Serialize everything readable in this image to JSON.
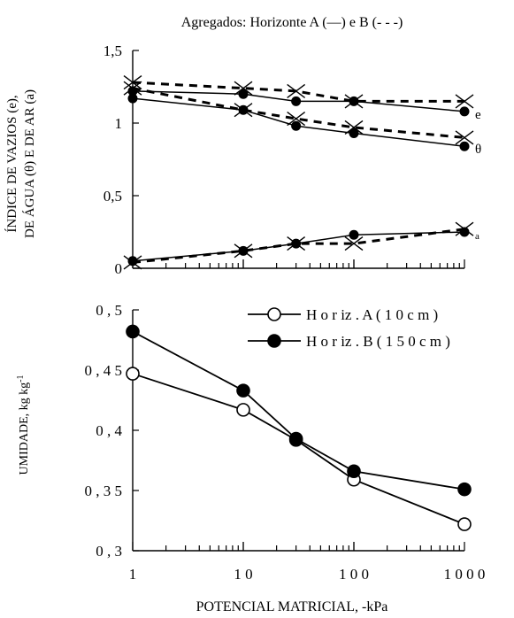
{
  "figure": {
    "title": "Agregados: Horizonte A (—) e B (- - -)",
    "xlabel": "POTENCIAL MATRICIAL, -kPa"
  },
  "chart_data": [
    {
      "type": "line",
      "title": "Agregados: Horizonte A (—) e B (- - -)",
      "ylabel": "ÍNDICE DE VAZIOS (e), DE ÁGUA (θ) E DE AR (a)",
      "ylabel_lines": [
        "ÍNDICE DE VAZIOS (e),",
        "DE ÁGUA (θ) E DE AR (a)"
      ],
      "x_scale": "log",
      "xlim": [
        1,
        1000
      ],
      "ylim": [
        0,
        1.5
      ],
      "yticks": [
        0,
        0.5,
        1,
        1.5
      ],
      "ytick_labels": [
        "0",
        "0,5",
        "1",
        "1,5"
      ],
      "series": [
        {
          "name": "e",
          "label": "e",
          "horizon": "A",
          "dash": "solid",
          "marker": "circle",
          "x": [
            1,
            10,
            30,
            100,
            1000
          ],
          "y": [
            1.22,
            1.2,
            1.15,
            1.15,
            1.08
          ]
        },
        {
          "horizon": "B",
          "dash": "dashed",
          "marker": "x",
          "x": [
            1,
            10,
            30,
            100,
            1000
          ],
          "y": [
            1.28,
            1.24,
            1.22,
            1.15,
            1.15
          ]
        },
        {
          "name": "θ",
          "label": "θ",
          "horizon": "A",
          "dash": "solid",
          "marker": "circle",
          "x": [
            1,
            10,
            30,
            100,
            1000
          ],
          "y": [
            1.17,
            1.09,
            0.98,
            0.93,
            0.84
          ]
        },
        {
          "horizon": "B",
          "dash": "dashed",
          "marker": "x",
          "x": [
            1,
            10,
            30,
            100,
            1000
          ],
          "y": [
            1.24,
            1.09,
            1.03,
            0.97,
            0.9
          ]
        },
        {
          "name": "a",
          "label": "a",
          "horizon": "A",
          "dash": "solid",
          "marker": "circle",
          "x": [
            1,
            10,
            30,
            100,
            1000
          ],
          "y": [
            0.05,
            0.12,
            0.17,
            0.23,
            0.25
          ]
        },
        {
          "horizon": "B",
          "dash": "dashed",
          "marker": "x",
          "x": [
            1,
            10,
            30,
            100,
            1000
          ],
          "y": [
            0.04,
            0.12,
            0.17,
            0.17,
            0.27
          ]
        }
      ]
    },
    {
      "type": "line",
      "ylabel": "UMIDADE, kg kg⁻¹",
      "ylabel_main": "UMIDADE, kg kg",
      "ylabel_sup": "-1",
      "xlabel": "POTENCIAL MATRICIAL, -kPa",
      "x_scale": "log",
      "xlim": [
        1,
        1000
      ],
      "xticks": [
        1,
        10,
        100,
        1000
      ],
      "xtick_labels": [
        "1",
        "1 0",
        "1 0 0",
        "1 0 0 0"
      ],
      "ylim": [
        0.3,
        0.5
      ],
      "yticks": [
        0.3,
        0.35,
        0.4,
        0.45,
        0.5
      ],
      "ytick_labels": [
        "0 , 3",
        "0 , 3 5",
        "0 , 4",
        "0 , 4 5",
        "0 , 5"
      ],
      "legend": "top-right",
      "series": [
        {
          "name": "H o r iz .  A  ( 1 0 c m )",
          "marker": "open-circle",
          "x": [
            1,
            10,
            30,
            100,
            1000
          ],
          "y": [
            0.447,
            0.417,
            0.392,
            0.359,
            0.322
          ]
        },
        {
          "name": "H o r iz .  B  ( 1 5 0 c m )",
          "marker": "filled-circle",
          "x": [
            1,
            10,
            30,
            100,
            1000
          ],
          "y": [
            0.482,
            0.433,
            0.393,
            0.366,
            0.351
          ]
        }
      ]
    }
  ]
}
